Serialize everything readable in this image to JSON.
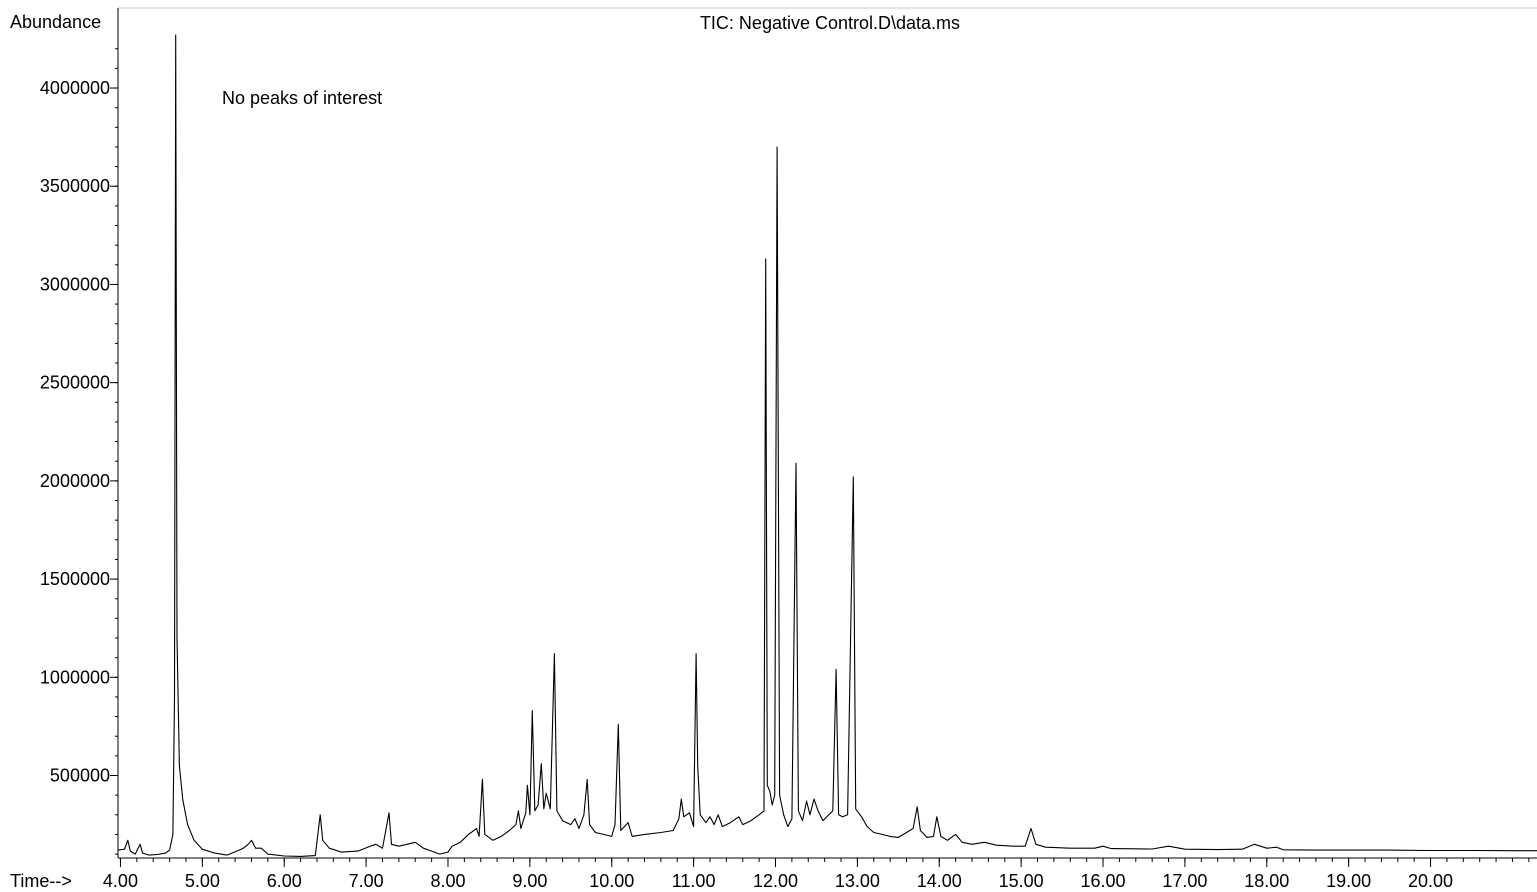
{
  "chart_data": {
    "type": "line",
    "title": "TIC: Negative Control.D\\data.ms",
    "annotation": "No peaks of interest",
    "ylabel": "Abundance",
    "xlabel": "Time-->",
    "xlim": [
      3.97,
      21.3
    ],
    "ylim": [
      80000,
      4270000
    ],
    "xticks": [
      4,
      5,
      6,
      7,
      8,
      9,
      10,
      11,
      12,
      13,
      14,
      15,
      16,
      17,
      18,
      19,
      20
    ],
    "xtick_labels": [
      "4.00",
      "5.00",
      "6.00",
      "7.00",
      "8.00",
      "9.00",
      "10.00",
      "11.00",
      "12.00",
      "13.00",
      "14.00",
      "15.00",
      "16.00",
      "17.00",
      "18.00",
      "19.00",
      "20.00"
    ],
    "yticks": [
      500000,
      1000000,
      1500000,
      2000000,
      2500000,
      3000000,
      3500000,
      4000000
    ],
    "ytick_labels": [
      "500000",
      "1000000",
      "1500000",
      "2000000",
      "2500000",
      "3000000",
      "3500000",
      "4000000"
    ],
    "grid": false,
    "line_color": "#000000",
    "series": [
      {
        "values": [
          [
            3.97,
            120000
          ],
          [
            4.05,
            125000
          ],
          [
            4.09,
            170000
          ],
          [
            4.12,
            115000
          ],
          [
            4.18,
            100000
          ],
          [
            4.24,
            150000
          ],
          [
            4.27,
            105000
          ],
          [
            4.35,
            95000
          ],
          [
            4.45,
            98000
          ],
          [
            4.55,
            105000
          ],
          [
            4.6,
            120000
          ],
          [
            4.64,
            200000
          ],
          [
            4.66,
            900000
          ],
          [
            4.675,
            4270000
          ],
          [
            4.69,
            1200000
          ],
          [
            4.72,
            550000
          ],
          [
            4.76,
            380000
          ],
          [
            4.82,
            250000
          ],
          [
            4.9,
            170000
          ],
          [
            5.0,
            125000
          ],
          [
            5.15,
            105000
          ],
          [
            5.3,
            95000
          ],
          [
            5.45,
            120000
          ],
          [
            5.5,
            130000
          ],
          [
            5.56,
            150000
          ],
          [
            5.6,
            170000
          ],
          [
            5.65,
            130000
          ],
          [
            5.72,
            130000
          ],
          [
            5.8,
            100000
          ],
          [
            6.0,
            90000
          ],
          [
            6.2,
            88000
          ],
          [
            6.38,
            92000
          ],
          [
            6.44,
            300000
          ],
          [
            6.47,
            170000
          ],
          [
            6.55,
            130000
          ],
          [
            6.7,
            110000
          ],
          [
            6.9,
            115000
          ],
          [
            7.05,
            140000
          ],
          [
            7.12,
            150000
          ],
          [
            7.2,
            130000
          ],
          [
            7.28,
            310000
          ],
          [
            7.31,
            150000
          ],
          [
            7.4,
            140000
          ],
          [
            7.5,
            150000
          ],
          [
            7.6,
            160000
          ],
          [
            7.7,
            130000
          ],
          [
            7.8,
            115000
          ],
          [
            7.9,
            100000
          ],
          [
            8.0,
            110000
          ],
          [
            8.05,
            140000
          ],
          [
            8.15,
            160000
          ],
          [
            8.25,
            200000
          ],
          [
            8.35,
            230000
          ],
          [
            8.38,
            190000
          ],
          [
            8.42,
            480000
          ],
          [
            8.45,
            200000
          ],
          [
            8.55,
            170000
          ],
          [
            8.65,
            190000
          ],
          [
            8.75,
            220000
          ],
          [
            8.83,
            250000
          ],
          [
            8.86,
            320000
          ],
          [
            8.89,
            230000
          ],
          [
            8.95,
            310000
          ],
          [
            8.97,
            450000
          ],
          [
            9.0,
            300000
          ],
          [
            9.03,
            830000
          ],
          [
            9.06,
            320000
          ],
          [
            9.1,
            350000
          ],
          [
            9.14,
            560000
          ],
          [
            9.17,
            330000
          ],
          [
            9.2,
            410000
          ],
          [
            9.25,
            330000
          ],
          [
            9.3,
            1120000
          ],
          [
            9.33,
            320000
          ],
          [
            9.4,
            270000
          ],
          [
            9.5,
            250000
          ],
          [
            9.55,
            280000
          ],
          [
            9.6,
            230000
          ],
          [
            9.66,
            300000
          ],
          [
            9.7,
            480000
          ],
          [
            9.73,
            250000
          ],
          [
            9.8,
            210000
          ],
          [
            9.9,
            200000
          ],
          [
            10.0,
            190000
          ],
          [
            10.04,
            250000
          ],
          [
            10.08,
            760000
          ],
          [
            10.11,
            220000
          ],
          [
            10.2,
            260000
          ],
          [
            10.25,
            190000
          ],
          [
            10.4,
            200000
          ],
          [
            10.6,
            210000
          ],
          [
            10.75,
            220000
          ],
          [
            10.82,
            280000
          ],
          [
            10.85,
            380000
          ],
          [
            10.88,
            290000
          ],
          [
            10.95,
            310000
          ],
          [
            11.0,
            240000
          ],
          [
            11.03,
            1120000
          ],
          [
            11.05,
            550000
          ],
          [
            11.08,
            300000
          ],
          [
            11.15,
            260000
          ],
          [
            11.2,
            290000
          ],
          [
            11.25,
            250000
          ],
          [
            11.3,
            300000
          ],
          [
            11.35,
            240000
          ],
          [
            11.45,
            260000
          ],
          [
            11.55,
            290000
          ],
          [
            11.6,
            250000
          ],
          [
            11.7,
            270000
          ],
          [
            11.8,
            300000
          ],
          [
            11.86,
            320000
          ],
          [
            11.88,
            3130000
          ],
          [
            11.9,
            450000
          ],
          [
            11.93,
            420000
          ],
          [
            11.96,
            350000
          ],
          [
            11.99,
            400000
          ],
          [
            12.02,
            3700000
          ],
          [
            12.05,
            400000
          ],
          [
            12.1,
            300000
          ],
          [
            12.15,
            240000
          ],
          [
            12.2,
            280000
          ],
          [
            12.25,
            2090000
          ],
          [
            12.28,
            320000
          ],
          [
            12.33,
            270000
          ],
          [
            12.38,
            370000
          ],
          [
            12.42,
            300000
          ],
          [
            12.47,
            380000
          ],
          [
            12.52,
            320000
          ],
          [
            12.58,
            270000
          ],
          [
            12.65,
            300000
          ],
          [
            12.7,
            320000
          ],
          [
            12.74,
            1040000
          ],
          [
            12.77,
            300000
          ],
          [
            12.82,
            290000
          ],
          [
            12.88,
            300000
          ],
          [
            12.95,
            2020000
          ],
          [
            12.98,
            330000
          ],
          [
            13.05,
            290000
          ],
          [
            13.12,
            240000
          ],
          [
            13.2,
            210000
          ],
          [
            13.3,
            200000
          ],
          [
            13.4,
            190000
          ],
          [
            13.5,
            185000
          ],
          [
            13.6,
            210000
          ],
          [
            13.68,
            230000
          ],
          [
            13.73,
            340000
          ],
          [
            13.77,
            220000
          ],
          [
            13.85,
            185000
          ],
          [
            13.93,
            190000
          ],
          [
            13.97,
            290000
          ],
          [
            14.02,
            190000
          ],
          [
            14.1,
            170000
          ],
          [
            14.2,
            200000
          ],
          [
            14.28,
            160000
          ],
          [
            14.4,
            150000
          ],
          [
            14.55,
            160000
          ],
          [
            14.7,
            145000
          ],
          [
            14.9,
            140000
          ],
          [
            15.05,
            140000
          ],
          [
            15.12,
            230000
          ],
          [
            15.18,
            150000
          ],
          [
            15.3,
            135000
          ],
          [
            15.6,
            130000
          ],
          [
            15.9,
            130000
          ],
          [
            16.0,
            140000
          ],
          [
            16.1,
            128000
          ],
          [
            16.4,
            127000
          ],
          [
            16.6,
            126000
          ],
          [
            16.8,
            140000
          ],
          [
            17.0,
            125000
          ],
          [
            17.4,
            123000
          ],
          [
            17.7,
            125000
          ],
          [
            17.85,
            150000
          ],
          [
            18.0,
            130000
          ],
          [
            18.12,
            135000
          ],
          [
            18.2,
            122000
          ],
          [
            18.6,
            120000
          ],
          [
            19.0,
            120000
          ],
          [
            19.5,
            120000
          ],
          [
            20.0,
            118000
          ],
          [
            20.5,
            118000
          ],
          [
            21.0,
            117000
          ],
          [
            21.3,
            117000
          ]
        ]
      }
    ]
  }
}
